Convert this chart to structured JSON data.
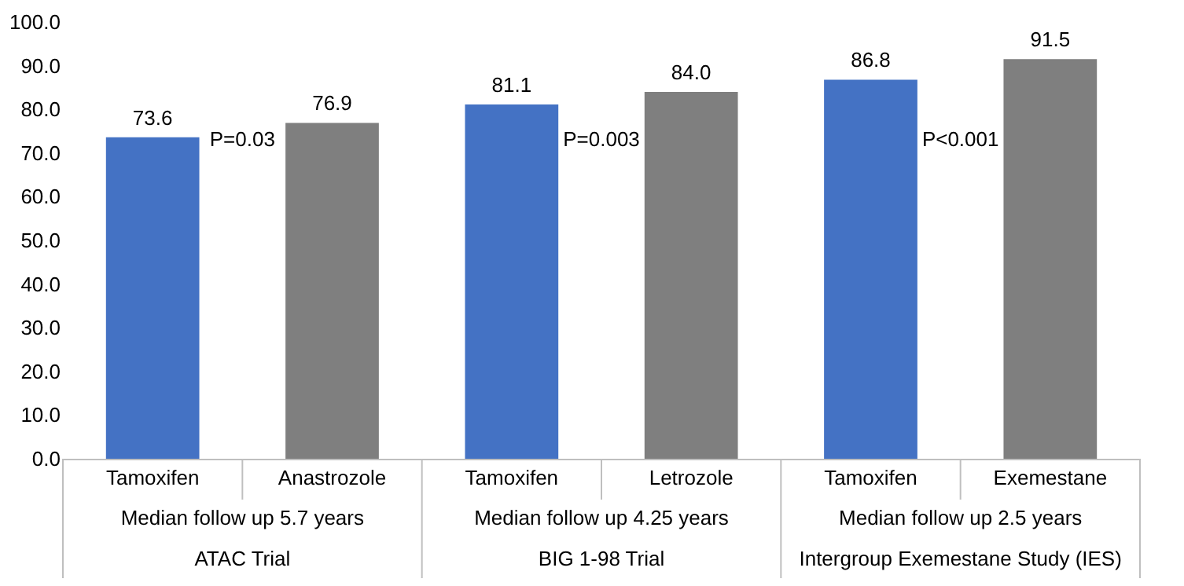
{
  "chart_data": {
    "type": "bar",
    "categories": [
      "Tamoxifen",
      "Anastrozole",
      "Tamoxifen",
      "Letrozole",
      "Tamoxifen",
      "Exemestane"
    ],
    "values": [
      73.6,
      76.9,
      81.1,
      84.0,
      86.8,
      91.5
    ],
    "colors": [
      "#4472c4",
      "#7f7f7f",
      "#4472c4",
      "#7f7f7f",
      "#4472c4",
      "#7f7f7f"
    ],
    "ylim": [
      0,
      100
    ],
    "yticks": [
      {
        "value": 0,
        "label": "0.0"
      },
      {
        "value": 10,
        "label": "10.0"
      },
      {
        "value": 20,
        "label": "20.0"
      },
      {
        "value": 30,
        "label": "30.0"
      },
      {
        "value": 40,
        "label": "40.0"
      },
      {
        "value": 50,
        "label": "50.0"
      },
      {
        "value": 60,
        "label": "60.0"
      },
      {
        "value": 70,
        "label": "70.0"
      },
      {
        "value": 80,
        "label": "80.0"
      },
      {
        "value": 90,
        "label": "90.0"
      },
      {
        "value": 100,
        "label": "100.0"
      }
    ],
    "grid": false,
    "value_labels": [
      "73.6",
      "76.9",
      "81.1",
      "84.0",
      "86.8",
      "91.5"
    ],
    "annotations": [
      "P=0.03",
      "P=0.003",
      "P<0.001",
      "Median follow up 5.7 years",
      "Median follow up 4.25 years",
      "Median follow up 2.5 years",
      "ATAC Trial",
      "BIG 1-98 Trial",
      "Intergroup Exemestane Study (IES)"
    ]
  }
}
